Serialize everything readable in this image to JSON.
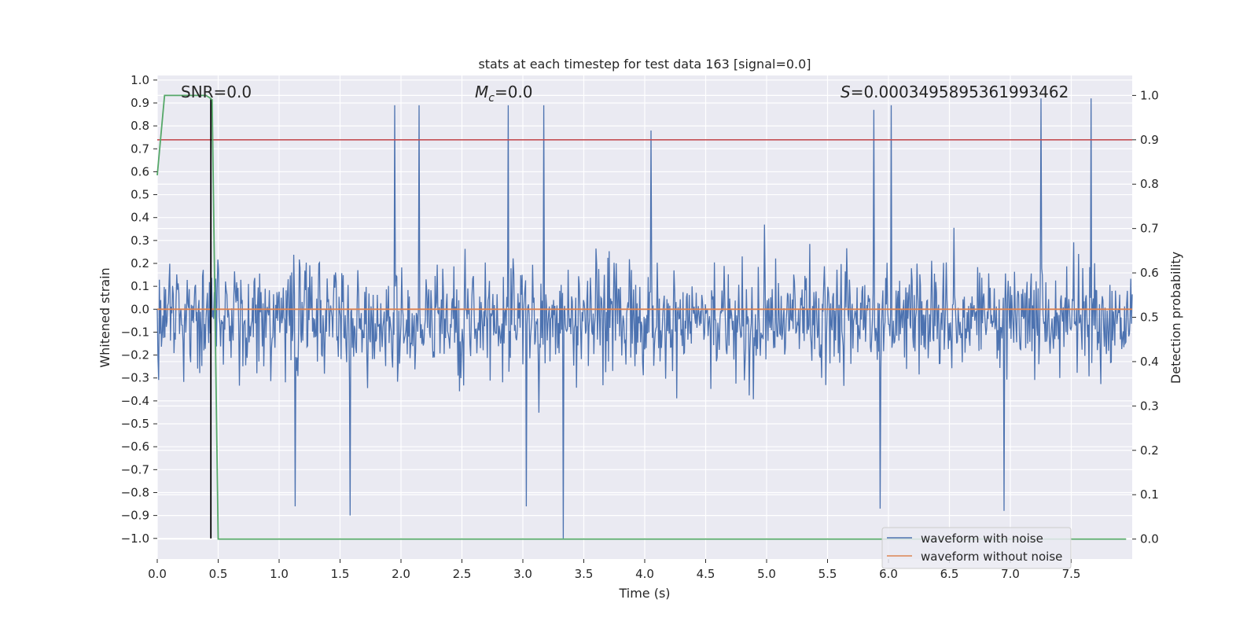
{
  "chart_data": {
    "type": "line",
    "title": "stats at each timestep for test data 163 [signal=0.0]",
    "xlabel": "Time (s)",
    "ylabel": "Whitened strain",
    "y2label": "Detection probability",
    "xlim": [
      0.0,
      8.0
    ],
    "ylim": [
      -1.09,
      1.02
    ],
    "y2lim": [
      -0.045,
      1.045
    ],
    "xticks": [
      0.0,
      0.5,
      1.0,
      1.5,
      2.0,
      2.5,
      3.0,
      3.5,
      4.0,
      4.5,
      5.0,
      5.5,
      6.0,
      6.5,
      7.0,
      7.5
    ],
    "xtick_labels": [
      "0.0",
      "0.5",
      "1.0",
      "1.5",
      "2.0",
      "2.5",
      "3.0",
      "3.5",
      "4.0",
      "4.5",
      "5.0",
      "5.5",
      "6.0",
      "6.5",
      "7.0",
      "7.5"
    ],
    "yticks": [
      1.0,
      0.9,
      0.8,
      0.7,
      0.6,
      0.5,
      0.4,
      0.3,
      0.2,
      0.1,
      0.0,
      -0.1,
      -0.2,
      -0.3,
      -0.4,
      -0.5,
      -0.6,
      -0.7,
      -0.8,
      -0.9,
      -1.0
    ],
    "ytick_labels": [
      "1.0",
      "0.9",
      "0.8",
      "0.7",
      "0.6",
      "0.5",
      "0.4",
      "0.3",
      "0.2",
      "0.1",
      "0.0",
      "−0.1",
      "−0.2",
      "−0.3",
      "−0.4",
      "−0.5",
      "−0.6",
      "−0.7",
      "−0.8",
      "−0.9",
      "−1.0"
    ],
    "y2ticks": [
      1.0,
      0.9,
      0.8,
      0.7,
      0.6,
      0.5,
      0.4,
      0.3,
      0.2,
      0.1,
      0.0
    ],
    "y2tick_labels": [
      "1.0",
      "0.9",
      "0.8",
      "0.7",
      "0.6",
      "0.5",
      "0.4",
      "0.3",
      "0.2",
      "0.1",
      "0.0"
    ],
    "annotations": {
      "snr": "SNR=0.0",
      "mc_symbol": "M",
      "mc_subscript": "c",
      "mc_value": "=0.0",
      "s_symbol": "S",
      "s_value": "=0.0003495895361993462"
    },
    "series": [
      {
        "name": "waveform with noise",
        "color": "#4c72b0",
        "description": "whitened noise, spans roughly -1.0 to 0.92 across 0-8 s",
        "x_range": [
          0.0,
          8.0
        ],
        "envelope": [
          -0.42,
          0.34
        ],
        "notable_peaks": [
          {
            "x": 1.95,
            "y": 0.89
          },
          {
            "x": 2.15,
            "y": 0.89
          },
          {
            "x": 2.88,
            "y": 0.89
          },
          {
            "x": 3.17,
            "y": 0.89
          },
          {
            "x": 5.88,
            "y": 0.87
          },
          {
            "x": 6.02,
            "y": 0.89
          },
          {
            "x": 7.25,
            "y": 0.92
          },
          {
            "x": 7.66,
            "y": 0.92
          },
          {
            "x": 4.05,
            "y": 0.78
          }
        ],
        "notable_troughs": [
          {
            "x": 3.33,
            "y": -1.0
          },
          {
            "x": 1.58,
            "y": -0.9
          },
          {
            "x": 3.03,
            "y": -0.86
          },
          {
            "x": 1.13,
            "y": -0.86
          },
          {
            "x": 6.95,
            "y": -0.88
          },
          {
            "x": 5.93,
            "y": -0.87
          }
        ]
      },
      {
        "name": "waveform without noise",
        "color": "#dd8452",
        "x": [
          0.0,
          8.0
        ],
        "values": [
          0.0,
          0.0
        ]
      },
      {
        "name": "detection probability",
        "axis": "right",
        "color": "#55a868",
        "x": [
          0.0,
          0.06,
          0.1,
          0.2,
          0.3,
          0.4,
          0.43,
          0.45,
          0.5,
          1.0,
          2.0,
          4.0,
          6.0,
          7.6,
          7.8,
          7.95
        ],
        "values": [
          0.82,
          1.0,
          1.0,
          1.0,
          1.0,
          1.0,
          0.995,
          0.99,
          0.0,
          0.0,
          0.0,
          0.0,
          0.0,
          0.0,
          0.0,
          0.0
        ]
      },
      {
        "name": "threshold",
        "axis": "right",
        "color": "#c44e52",
        "value": 0.9
      },
      {
        "name": "detection marker",
        "color": "#000000",
        "x": 0.44,
        "y_range": [
          -1.0,
          0.92
        ]
      }
    ],
    "legend": {
      "position": "lower-right",
      "entries": [
        "waveform with noise",
        "waveform without noise"
      ]
    },
    "grid": true
  }
}
